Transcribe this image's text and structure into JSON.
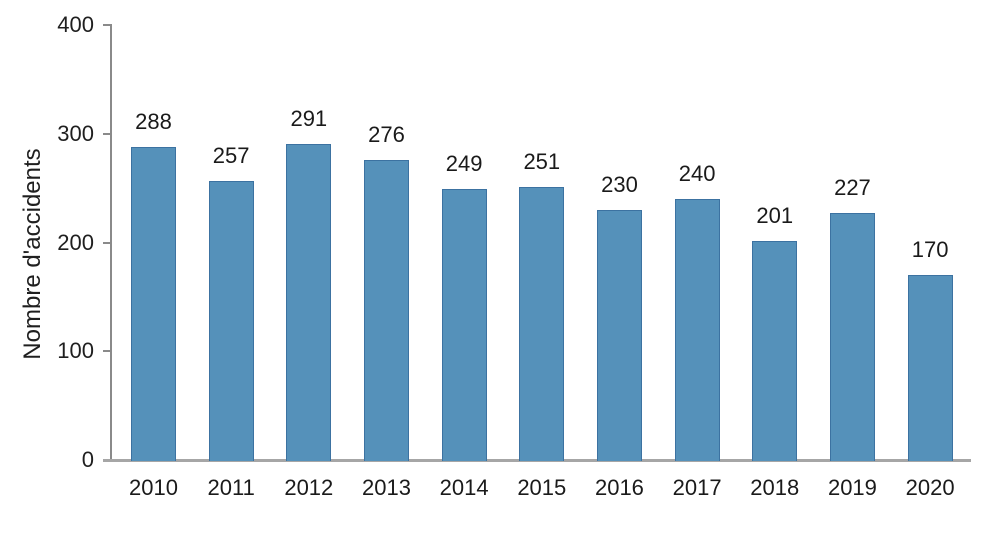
{
  "chart_data": {
    "type": "bar",
    "categories": [
      "2010",
      "2011",
      "2012",
      "2013",
      "2014",
      "2015",
      "2016",
      "2017",
      "2018",
      "2019",
      "2020"
    ],
    "values": [
      288,
      257,
      291,
      276,
      249,
      251,
      230,
      240,
      201,
      227,
      170
    ],
    "title": "",
    "xlabel": "",
    "ylabel": "Nombre d'accidents",
    "ylim": [
      0,
      400
    ],
    "yticks": [
      0,
      100,
      200,
      300,
      400
    ],
    "grid": false,
    "legend": null,
    "data_labels": true,
    "colors": {
      "bar_fill": "#5591ba",
      "bar_border": "#3c72a1",
      "axis": "#8a8a8a",
      "baseline": "#a6a6a6",
      "text": "#1f1f1f"
    }
  }
}
